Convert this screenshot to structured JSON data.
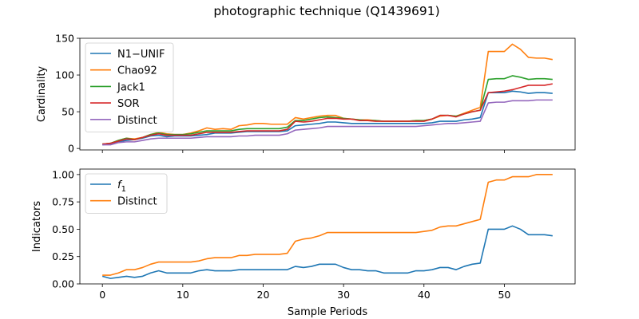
{
  "title": "photographic technique (Q1439691)",
  "chart_data": [
    {
      "type": "line",
      "ylabel": "Cardinality",
      "xlabel": "",
      "xlim": [
        -2.8,
        58.8
      ],
      "ylim": [
        -2,
        150
      ],
      "yticks": [
        0,
        50,
        100,
        150
      ],
      "xticks": [
        0,
        10,
        20,
        30,
        40,
        50
      ],
      "show_xtick_labels": false,
      "legend_position": "upper-left",
      "x": [
        0,
        1,
        2,
        3,
        4,
        5,
        6,
        7,
        8,
        9,
        10,
        11,
        12,
        13,
        14,
        15,
        16,
        17,
        18,
        19,
        20,
        21,
        22,
        23,
        24,
        25,
        26,
        27,
        28,
        29,
        30,
        31,
        32,
        33,
        34,
        35,
        36,
        37,
        38,
        39,
        40,
        41,
        42,
        43,
        44,
        45,
        46,
        47,
        48,
        49,
        50,
        51,
        52,
        53,
        54,
        55,
        56
      ],
      "series": [
        {
          "name": "N1−UNIF",
          "color": "#1f77b4",
          "values": [
            5,
            6,
            9,
            11,
            12,
            14,
            17,
            18,
            16,
            17,
            17,
            17,
            18,
            19,
            21,
            21,
            21,
            22,
            23,
            23,
            23,
            23,
            23,
            24,
            31,
            32,
            33,
            34,
            36,
            36,
            35,
            34,
            34,
            34,
            34,
            34,
            34,
            34,
            34,
            34,
            34,
            35,
            37,
            37,
            37,
            39,
            40,
            42,
            76,
            76,
            76,
            78,
            77,
            75,
            76,
            76,
            75
          ]
        },
        {
          "name": "Chao92",
          "color": "#ff7f0e",
          "values": [
            6,
            7,
            11,
            14,
            13,
            15,
            19,
            22,
            20,
            19,
            19,
            21,
            24,
            28,
            26,
            27,
            26,
            31,
            32,
            34,
            34,
            33,
            33,
            33,
            42,
            40,
            42,
            44,
            45,
            45,
            41,
            40,
            39,
            39,
            38,
            37,
            37,
            37,
            37,
            38,
            38,
            40,
            44,
            45,
            44,
            48,
            52,
            56,
            132,
            132,
            132,
            142,
            135,
            124,
            123,
            123,
            121
          ]
        },
        {
          "name": "Jack1",
          "color": "#2ca02c",
          "values": [
            6,
            7,
            11,
            14,
            12,
            15,
            19,
            21,
            19,
            19,
            19,
            20,
            22,
            24,
            24,
            24,
            24,
            26,
            27,
            27,
            27,
            27,
            27,
            29,
            38,
            38,
            40,
            42,
            43,
            42,
            41,
            40,
            39,
            38,
            38,
            37,
            37,
            37,
            37,
            38,
            38,
            40,
            45,
            45,
            44,
            47,
            50,
            52,
            94,
            95,
            95,
            99,
            97,
            94,
            95,
            95,
            94
          ]
        },
        {
          "name": "SOR",
          "color": "#d62728",
          "values": [
            6,
            7,
            10,
            13,
            12,
            15,
            18,
            20,
            18,
            18,
            18,
            18,
            20,
            22,
            22,
            22,
            22,
            23,
            24,
            24,
            24,
            24,
            24,
            26,
            37,
            36,
            37,
            39,
            41,
            41,
            40,
            40,
            38,
            38,
            37,
            37,
            37,
            37,
            37,
            37,
            37,
            40,
            45,
            45,
            43,
            47,
            50,
            52,
            76,
            77,
            78,
            80,
            83,
            86,
            86,
            86,
            88
          ]
        },
        {
          "name": "Distinct",
          "color": "#9467bd",
          "values": [
            5,
            5,
            8,
            9,
            9,
            11,
            13,
            14,
            14,
            14,
            14,
            14,
            15,
            16,
            16,
            16,
            16,
            17,
            17,
            18,
            18,
            18,
            18,
            20,
            25,
            26,
            27,
            28,
            30,
            30,
            30,
            30,
            30,
            30,
            30,
            30,
            30,
            30,
            30,
            30,
            31,
            32,
            33,
            34,
            34,
            35,
            36,
            37,
            62,
            63,
            63,
            65,
            65,
            65,
            66,
            66,
            66
          ]
        }
      ]
    },
    {
      "type": "line",
      "ylabel": "Indicators",
      "xlabel": "Sample Periods",
      "xlim": [
        -2.8,
        58.8
      ],
      "ylim": [
        0,
        1.05
      ],
      "yticks": [
        0.0,
        0.25,
        0.5,
        0.75,
        1.0
      ],
      "ytick_labels": [
        "0.00",
        "0.25",
        "0.50",
        "0.75",
        "1.00"
      ],
      "xticks": [
        0,
        10,
        20,
        30,
        40,
        50
      ],
      "xtick_labels": [
        "0",
        "10",
        "20",
        "30",
        "40",
        "50"
      ],
      "legend_position": "upper-left",
      "x": [
        0,
        1,
        2,
        3,
        4,
        5,
        6,
        7,
        8,
        9,
        10,
        11,
        12,
        13,
        14,
        15,
        16,
        17,
        18,
        19,
        20,
        21,
        22,
        23,
        24,
        25,
        26,
        27,
        28,
        29,
        30,
        31,
        32,
        33,
        34,
        35,
        36,
        37,
        38,
        39,
        40,
        41,
        42,
        43,
        44,
        45,
        46,
        47,
        48,
        49,
        50,
        51,
        52,
        53,
        54,
        55,
        56
      ],
      "series": [
        {
          "name": "f1",
          "color": "#1f77b4",
          "values": [
            0.07,
            0.05,
            0.06,
            0.07,
            0.06,
            0.07,
            0.1,
            0.12,
            0.1,
            0.1,
            0.1,
            0.1,
            0.12,
            0.13,
            0.12,
            0.12,
            0.12,
            0.13,
            0.13,
            0.13,
            0.13,
            0.13,
            0.13,
            0.13,
            0.16,
            0.15,
            0.16,
            0.18,
            0.18,
            0.18,
            0.15,
            0.13,
            0.13,
            0.12,
            0.12,
            0.1,
            0.1,
            0.1,
            0.1,
            0.12,
            0.12,
            0.13,
            0.15,
            0.15,
            0.13,
            0.16,
            0.18,
            0.19,
            0.5,
            0.5,
            0.5,
            0.53,
            0.5,
            0.45,
            0.45,
            0.45,
            0.44
          ]
        },
        {
          "name": "Distinct",
          "color": "#ff7f0e",
          "values": [
            0.08,
            0.08,
            0.1,
            0.13,
            0.13,
            0.15,
            0.18,
            0.2,
            0.2,
            0.2,
            0.2,
            0.2,
            0.21,
            0.23,
            0.24,
            0.24,
            0.24,
            0.26,
            0.26,
            0.27,
            0.27,
            0.27,
            0.27,
            0.28,
            0.39,
            0.41,
            0.42,
            0.44,
            0.47,
            0.47,
            0.47,
            0.47,
            0.47,
            0.47,
            0.47,
            0.47,
            0.47,
            0.47,
            0.47,
            0.47,
            0.48,
            0.49,
            0.52,
            0.53,
            0.53,
            0.55,
            0.57,
            0.59,
            0.93,
            0.95,
            0.95,
            0.98,
            0.98,
            0.98,
            1.0,
            1.0,
            1.0
          ]
        }
      ]
    }
  ]
}
